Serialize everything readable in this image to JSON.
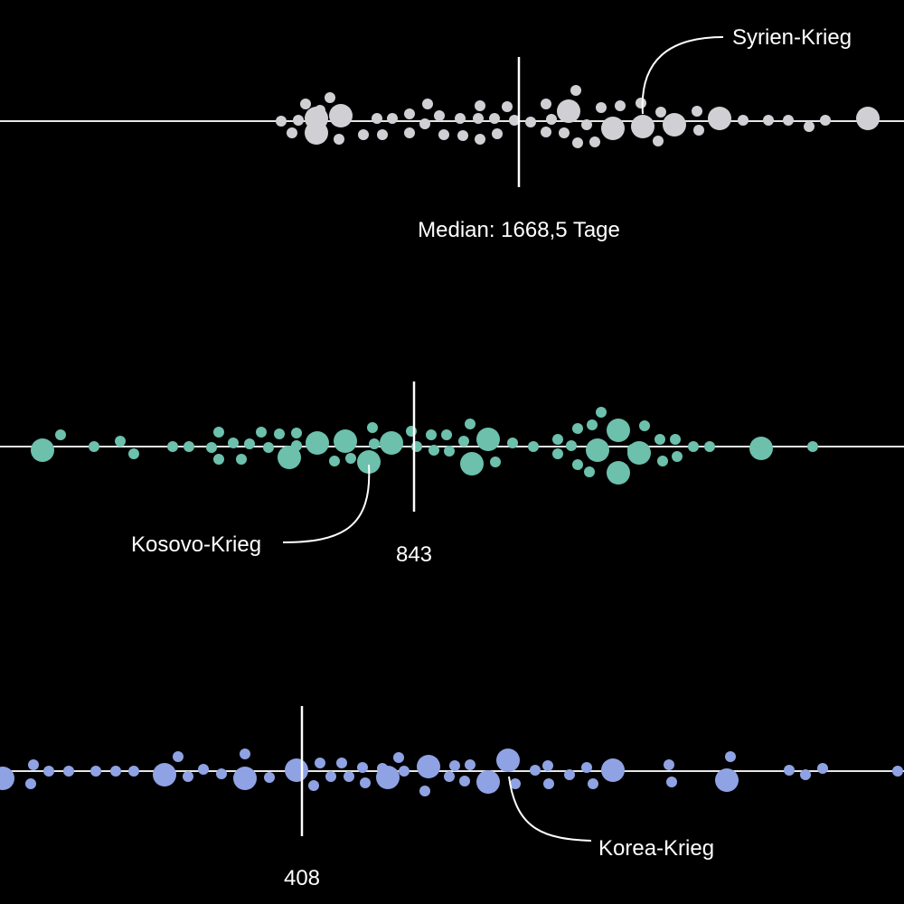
{
  "chart_data": [
    {
      "type": "scatter",
      "name": "",
      "color": "#d0d0d4",
      "median_label": "Median: 1668,5 Tage",
      "annotation_label": "Syrien-Krieg",
      "points": [
        [
          311,
          0,
          6
        ],
        [
          330,
          -1,
          6
        ],
        [
          338,
          -19,
          6
        ],
        [
          350,
          -3,
          13
        ],
        [
          365,
          -26,
          6
        ],
        [
          377,
          -6,
          13
        ],
        [
          323,
          13,
          6
        ],
        [
          350,
          13,
          13
        ],
        [
          375,
          20,
          6
        ],
        [
          354,
          -12,
          6
        ],
        [
          402,
          15,
          6
        ],
        [
          417,
          -3,
          6
        ],
        [
          423,
          15,
          6
        ],
        [
          434,
          -3,
          6
        ],
        [
          453,
          -8,
          6
        ],
        [
          453,
          13,
          6
        ],
        [
          473,
          -19,
          6
        ],
        [
          470,
          3,
          6
        ],
        [
          486,
          -6,
          6
        ],
        [
          491,
          15,
          6
        ],
        [
          509,
          -3,
          6
        ],
        [
          512,
          16,
          6
        ],
        [
          529,
          -3,
          6
        ],
        [
          531,
          -17,
          6
        ],
        [
          531,
          20,
          6
        ],
        [
          547,
          -3,
          6
        ],
        [
          550,
          14,
          6
        ],
        [
          561,
          -16,
          6
        ],
        [
          569,
          -1,
          6
        ],
        [
          587,
          1,
          6
        ],
        [
          604,
          -19,
          6
        ],
        [
          604,
          12,
          6
        ],
        [
          610,
          -2,
          6
        ],
        [
          624,
          13,
          6
        ],
        [
          629,
          -11,
          13
        ],
        [
          637,
          -34,
          6
        ],
        [
          639,
          24,
          6
        ],
        [
          649,
          4,
          6
        ],
        [
          658,
          23,
          6
        ],
        [
          665,
          -15,
          6
        ],
        [
          678,
          8,
          13
        ],
        [
          686,
          -17,
          6
        ],
        [
          709,
          -20,
          6
        ],
        [
          711,
          6,
          13
        ],
        [
          728,
          22,
          6
        ],
        [
          731,
          -10,
          6
        ],
        [
          746,
          4,
          13
        ],
        [
          771,
          -11,
          6
        ],
        [
          773,
          10,
          6
        ],
        [
          796,
          -3,
          13
        ],
        [
          822,
          -1,
          6
        ],
        [
          850,
          -1,
          6
        ],
        [
          872,
          -1,
          6
        ],
        [
          895,
          6,
          6
        ],
        [
          913,
          -1,
          6
        ],
        [
          960,
          -3,
          13
        ]
      ],
      "median_x": 574,
      "axis_y": 134,
      "annotation_target": [
        711,
        126
      ],
      "annotation_label_pos": [
        810,
        49
      ]
    },
    {
      "type": "scatter",
      "name": "",
      "color": "#6cc0ac",
      "median_label": "843",
      "annotation_label": "Kosovo-Krieg",
      "points": [
        [
          47,
          4,
          13
        ],
        [
          67,
          -13,
          6
        ],
        [
          104,
          0,
          6
        ],
        [
          133,
          -6,
          6
        ],
        [
          148,
          8,
          6
        ],
        [
          191,
          0,
          6
        ],
        [
          209,
          0,
          6
        ],
        [
          234,
          1,
          6
        ],
        [
          242,
          -16,
          6
        ],
        [
          242,
          14,
          6
        ],
        [
          258,
          -4,
          6
        ],
        [
          267,
          14,
          6
        ],
        [
          276,
          -3,
          6
        ],
        [
          289,
          -16,
          6
        ],
        [
          297,
          1,
          6
        ],
        [
          309,
          -14,
          6
        ],
        [
          320,
          12,
          13
        ],
        [
          328,
          -15,
          6
        ],
        [
          328,
          -1,
          6
        ],
        [
          351,
          -4,
          13
        ],
        [
          370,
          16,
          6
        ],
        [
          382,
          -6,
          13
        ],
        [
          388,
          13,
          6
        ],
        [
          408,
          17,
          13
        ],
        [
          412,
          -21,
          6
        ],
        [
          414,
          -3,
          6
        ],
        [
          433,
          -4,
          13
        ],
        [
          455,
          -17,
          6
        ],
        [
          461,
          0,
          6
        ],
        [
          477,
          -13,
          6
        ],
        [
          480,
          4,
          6
        ],
        [
          494,
          -13,
          6
        ],
        [
          497,
          5,
          6
        ],
        [
          513,
          -6,
          6
        ],
        [
          520,
          -25,
          6
        ],
        [
          522,
          19,
          13
        ],
        [
          540,
          -8,
          13
        ],
        [
          548,
          17,
          6
        ],
        [
          567,
          -4,
          6
        ],
        [
          590,
          0,
          6
        ],
        [
          617,
          -8,
          6
        ],
        [
          617,
          8,
          6
        ],
        [
          632,
          -1,
          6
        ],
        [
          639,
          -20,
          6
        ],
        [
          639,
          20,
          6
        ],
        [
          655,
          -24,
          6
        ],
        [
          661,
          4,
          13
        ],
        [
          652,
          28,
          6
        ],
        [
          665,
          -38,
          6
        ],
        [
          684,
          -18,
          13
        ],
        [
          684,
          29,
          13
        ],
        [
          700,
          3,
          6
        ],
        [
          707,
          7,
          13
        ],
        [
          713,
          -23,
          6
        ],
        [
          730,
          -8,
          6
        ],
        [
          733,
          16,
          6
        ],
        [
          747,
          -8,
          6
        ],
        [
          749,
          11,
          6
        ],
        [
          767,
          0,
          6
        ],
        [
          785,
          0,
          6
        ],
        [
          842,
          2,
          13
        ],
        [
          899,
          0,
          6
        ]
      ],
      "median_x": 458,
      "axis_y": 494,
      "annotation_target": [
        408,
        514
      ],
      "annotation_label_pos": [
        145,
        610
      ]
    },
    {
      "type": "scatter",
      "name": "",
      "color": "#8fa2e3",
      "median_label": "408",
      "annotation_label": "Korea-Krieg",
      "points": [
        [
          3,
          8,
          13
        ],
        [
          34,
          14,
          6
        ],
        [
          37,
          -7,
          6
        ],
        [
          54,
          0,
          6
        ],
        [
          76,
          0,
          6
        ],
        [
          106,
          0,
          6
        ],
        [
          128,
          0,
          6
        ],
        [
          148,
          0,
          6
        ],
        [
          182,
          4,
          13
        ],
        [
          197,
          -16,
          6
        ],
        [
          208,
          6,
          6
        ],
        [
          225,
          -2,
          6
        ],
        [
          245,
          3,
          6
        ],
        [
          271,
          -19,
          6
        ],
        [
          271,
          8,
          13
        ],
        [
          298,
          7,
          6
        ],
        [
          328,
          -1,
          13
        ],
        [
          347,
          16,
          6
        ],
        [
          354,
          -9,
          6
        ],
        [
          366,
          6,
          6
        ],
        [
          378,
          -9,
          6
        ],
        [
          386,
          6,
          6
        ],
        [
          401,
          -4,
          6
        ],
        [
          404,
          13,
          6
        ],
        [
          423,
          -3,
          6
        ],
        [
          429,
          7,
          13
        ],
        [
          441,
          -15,
          6
        ],
        [
          447,
          0,
          6
        ],
        [
          474,
          -5,
          13
        ],
        [
          470,
          22,
          6
        ],
        [
          497,
          6,
          6
        ],
        [
          503,
          -6,
          6
        ],
        [
          514,
          11,
          6
        ],
        [
          520,
          -7,
          6
        ],
        [
          540,
          12,
          13
        ],
        [
          562,
          -12,
          13
        ],
        [
          570,
          14,
          6
        ],
        [
          592,
          -1,
          6
        ],
        [
          606,
          -6,
          6
        ],
        [
          607,
          14,
          6
        ],
        [
          630,
          4,
          6
        ],
        [
          649,
          -4,
          6
        ],
        [
          656,
          14,
          6
        ],
        [
          678,
          -1,
          13
        ],
        [
          740,
          -7,
          6
        ],
        [
          743,
          12,
          6
        ],
        [
          804,
          10,
          13
        ],
        [
          808,
          -16,
          6
        ],
        [
          873,
          -1,
          6
        ],
        [
          891,
          4,
          6
        ],
        [
          910,
          -3,
          6
        ],
        [
          993,
          0,
          6
        ]
      ],
      "median_x": 334,
      "axis_y": 853,
      "annotation_target": [
        563,
        859
      ],
      "annotation_label_pos": [
        662,
        946
      ]
    }
  ]
}
